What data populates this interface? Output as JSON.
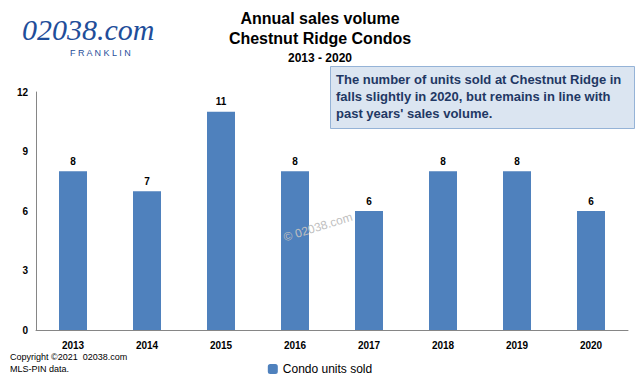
{
  "chart_data": {
    "type": "bar",
    "title": "Annual sales volume",
    "subtitle": "Chestnut Ridge Condos",
    "annotations": {
      "period": "2013 - 2020",
      "note": "The number of units sold at Chestnut Ridge in falls slightly in 2020, but remains in line with past years' sales volume.",
      "logo": "02038.com",
      "logo_sub": "FRANKLIN",
      "copyright": "Copyright ©2021  02038.com",
      "source": "MLS-PIN data.",
      "watermark": "© 02038.com"
    },
    "categories": [
      "2013",
      "2014",
      "2015",
      "2016",
      "2017",
      "2018",
      "2019",
      "2020"
    ],
    "series": [
      {
        "name": "Condo units sold",
        "color": "#4f81bd",
        "values": [
          8,
          7,
          11,
          8,
          6,
          8,
          8,
          6
        ]
      }
    ],
    "ylim": [
      0,
      12
    ],
    "yticks": [
      0,
      3,
      6,
      9,
      12
    ],
    "grid": false,
    "data_labels": true,
    "legend": "bottom"
  }
}
